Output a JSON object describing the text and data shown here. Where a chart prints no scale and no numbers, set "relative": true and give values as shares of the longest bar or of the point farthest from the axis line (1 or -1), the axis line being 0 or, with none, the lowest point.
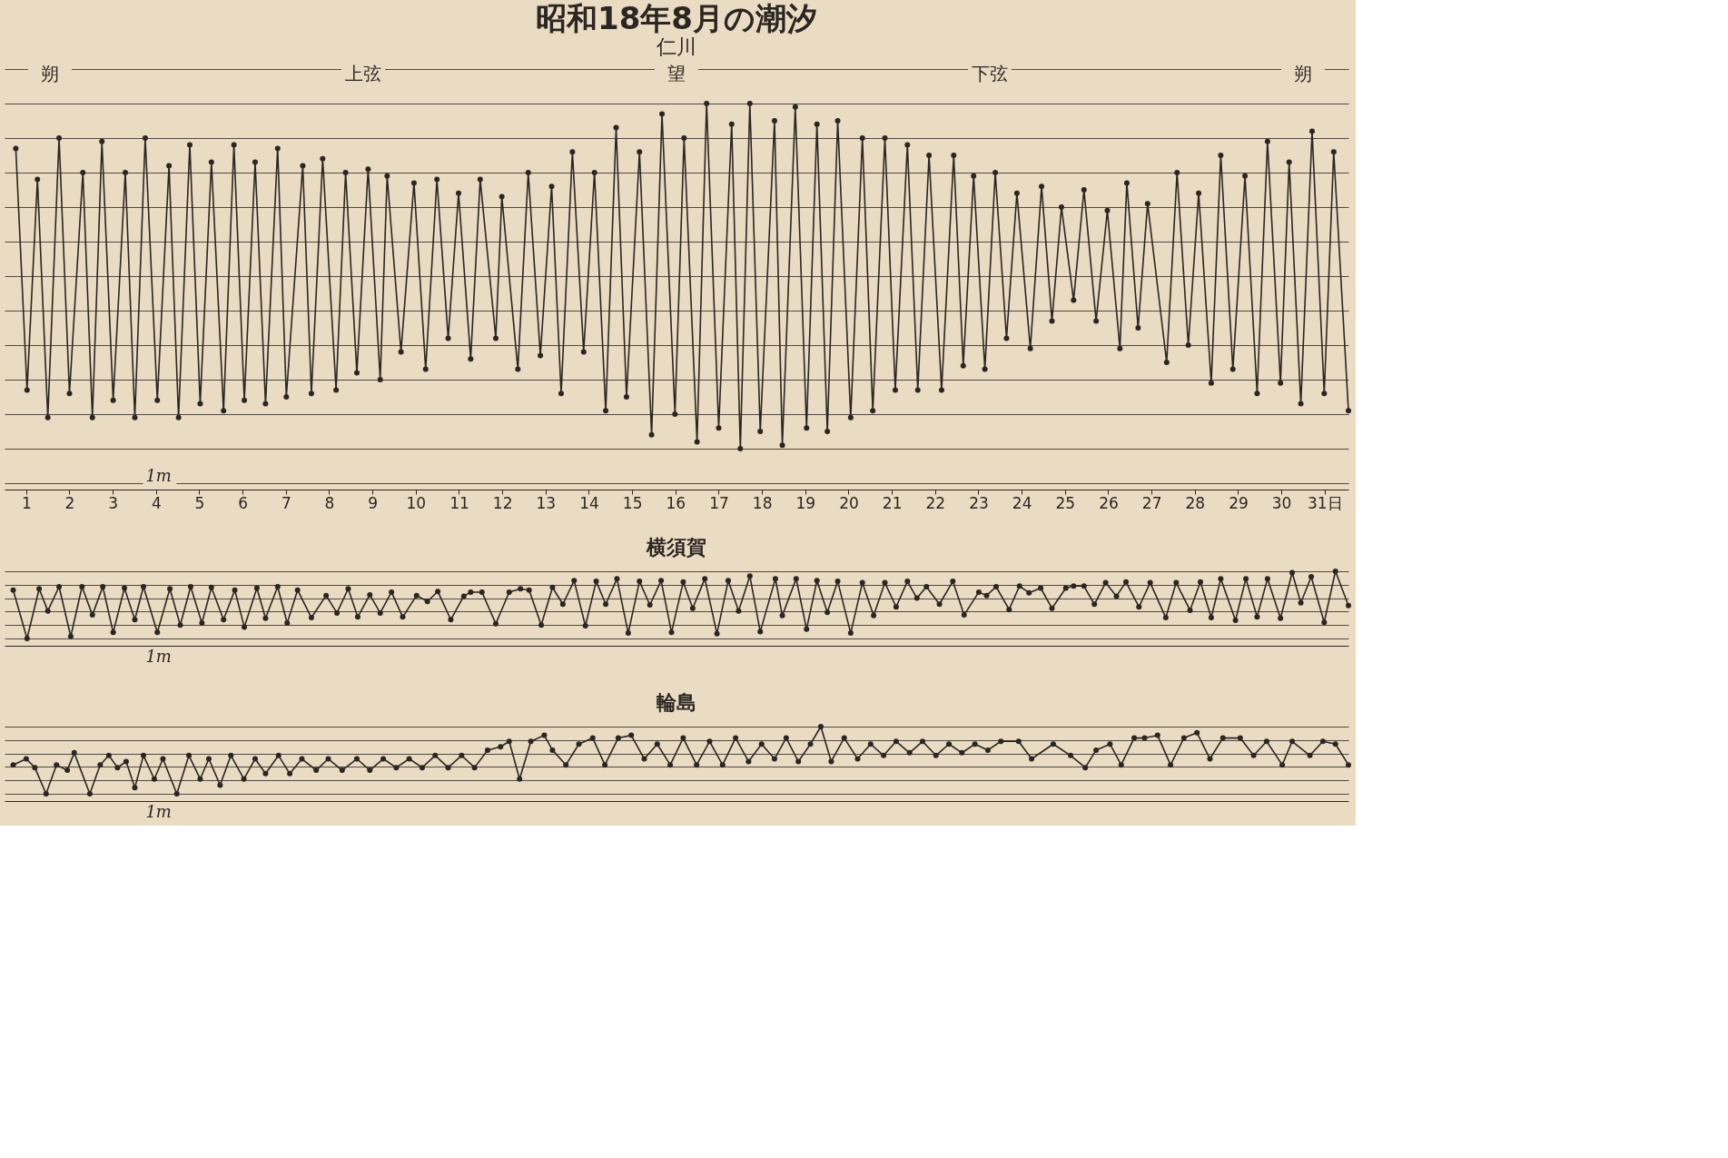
{
  "chart_data": [
    {
      "type": "line",
      "title": "昭和18年8月の潮汐",
      "subtitle": "仁川",
      "relative": true,
      "grid": "y",
      "marker": "circle",
      "line_style": "solid",
      "xlim": [
        1,
        32.05
      ],
      "xticks": [
        {
          "value": 1.5,
          "label": "1"
        },
        {
          "value": 2.5,
          "label": "2"
        },
        {
          "value": 3.5,
          "label": "3"
        },
        {
          "value": 4.5,
          "label": "4"
        },
        {
          "value": 5.5,
          "label": "5"
        },
        {
          "value": 6.5,
          "label": "6"
        },
        {
          "value": 7.5,
          "label": "7"
        },
        {
          "value": 8.5,
          "label": "8"
        },
        {
          "value": 9.5,
          "label": "9"
        },
        {
          "value": 10.5,
          "label": "10"
        },
        {
          "value": 11.5,
          "label": "11"
        },
        {
          "value": 12.5,
          "label": "12"
        },
        {
          "value": 13.5,
          "label": "13"
        },
        {
          "value": 14.5,
          "label": "14"
        },
        {
          "value": 15.5,
          "label": "15"
        },
        {
          "value": 16.5,
          "label": "16"
        },
        {
          "value": 17.5,
          "label": "17"
        },
        {
          "value": 18.5,
          "label": "18"
        },
        {
          "value": 19.5,
          "label": "19"
        },
        {
          "value": 20.5,
          "label": "20"
        },
        {
          "value": 21.5,
          "label": "21"
        },
        {
          "value": 22.5,
          "label": "22"
        },
        {
          "value": 23.5,
          "label": "23"
        },
        {
          "value": 24.5,
          "label": "24"
        },
        {
          "value": 25.5,
          "label": "25"
        },
        {
          "value": 26.5,
          "label": "26"
        },
        {
          "value": 27.5,
          "label": "27"
        },
        {
          "value": 28.5,
          "label": "28"
        },
        {
          "value": 29.5,
          "label": "29"
        },
        {
          "value": 30.5,
          "label": "30"
        },
        {
          "value": 31.5,
          "label": "31日"
        }
      ],
      "annotations": [
        "朔",
        "上弦",
        "望",
        "下弦",
        "朔",
        "1m"
      ],
      "x": [
        1.26,
        1.52,
        1.76,
        2.0,
        2.26,
        2.5,
        2.81,
        3.03,
        3.25,
        3.51,
        3.79,
        4.01,
        4.25,
        4.53,
        4.8,
        5.02,
        5.28,
        5.52,
        5.78,
        6.06,
        6.3,
        6.54,
        6.79,
        7.03,
        7.31,
        7.51,
        7.89,
        8.09,
        8.35,
        8.66,
        8.88,
        9.14,
        9.4,
        9.68,
        9.84,
        10.16,
        10.46,
        10.73,
        10.99,
        11.25,
        11.49,
        11.77,
        11.99,
        12.35,
        12.49,
        12.86,
        13.1,
        13.38,
        13.64,
        13.86,
        14.12,
        14.38,
        14.63,
        14.89,
        15.13,
        15.37,
        15.67,
        15.95,
        16.19,
        16.49,
        16.7,
        17.0,
        17.22,
        17.5,
        17.8,
        18.0,
        18.22,
        18.46,
        18.79,
        18.97,
        19.27,
        19.53,
        19.77,
        20.01,
        20.25,
        20.55,
        20.82,
        21.06,
        21.34,
        21.58,
        21.86,
        22.1,
        22.36,
        22.65,
        22.93,
        23.15,
        23.39,
        23.65,
        23.89,
        24.15,
        24.39,
        24.7,
        24.96,
        25.2,
        25.42,
        25.7,
        25.94,
        26.22,
        26.48,
        26.77,
        26.93,
        27.19,
        27.41,
        27.85,
        28.09,
        28.35,
        28.59,
        28.88,
        29.1,
        29.38,
        29.66,
        29.94,
        30.18,
        30.48,
        30.68,
        30.95,
        31.21,
        31.49,
        31.71,
        32.05
      ],
      "series": [
        {
          "color": "#2b2622",
          "values": [
            0.87,
            0.17,
            0.78,
            0.09,
            0.9,
            0.16,
            0.8,
            0.09,
            0.89,
            0.14,
            0.8,
            0.09,
            0.9,
            0.14,
            0.82,
            0.09,
            0.88,
            0.13,
            0.83,
            0.11,
            0.88,
            0.14,
            0.83,
            0.13,
            0.87,
            0.15,
            0.82,
            0.16,
            0.84,
            0.17,
            0.8,
            0.22,
            0.81,
            0.2,
            0.79,
            0.28,
            0.77,
            0.23,
            0.78,
            0.32,
            0.74,
            0.26,
            0.78,
            0.32,
            0.73,
            0.23,
            0.8,
            0.27,
            0.76,
            0.16,
            0.86,
            0.28,
            0.8,
            0.11,
            0.93,
            0.15,
            0.86,
            0.04,
            0.97,
            0.1,
            0.9,
            0.02,
            1.0,
            0.06,
            0.94,
            0,
            1.0,
            0.05,
            0.95,
            0.01,
            0.99,
            0.06,
            0.94,
            0.05,
            0.95,
            0.09,
            0.9,
            0.11,
            0.9,
            0.17,
            0.88,
            0.17,
            0.85,
            0.17,
            0.85,
            0.24,
            0.79,
            0.23,
            0.8,
            0.32,
            0.74,
            0.29,
            0.76,
            0.37,
            0.7,
            0.43,
            0.75,
            0.37,
            0.69,
            0.29,
            0.77,
            0.35,
            0.71,
            0.25,
            0.8,
            0.3,
            0.74,
            0.19,
            0.85,
            0.23,
            0.79,
            0.16,
            0.89,
            0.19,
            0.83,
            0.13,
            0.92,
            0.16,
            0.86,
            0.11
          ]
        }
      ]
    },
    {
      "type": "line",
      "title": "横須賀",
      "relative": true,
      "grid": "y",
      "marker": "circle",
      "line_style": "solid",
      "xlim": [
        1,
        32.05
      ],
      "tick_labels": false,
      "annotations": [
        "1m"
      ],
      "x": [
        1.2,
        1.52,
        1.8,
        2.0,
        2.26,
        2.53,
        2.79,
        3.03,
        3.27,
        3.51,
        3.77,
        4.01,
        4.21,
        4.53,
        4.82,
        5.06,
        5.3,
        5.56,
        5.78,
        6.06,
        6.32,
        6.54,
        6.83,
        7.03,
        7.31,
        7.53,
        7.77,
        8.09,
        8.43,
        8.68,
        8.94,
        9.16,
        9.44,
        9.68,
        9.94,
        10.2,
        10.52,
        10.77,
        11.01,
        11.31,
        11.61,
        11.77,
        12.03,
        12.35,
        12.66,
        12.92,
        13.12,
        13.4,
        13.66,
        13.9,
        14.16,
        14.42,
        14.67,
        14.89,
        15.15,
        15.41,
        15.67,
        15.91,
        16.17,
        16.41,
        16.68,
        16.9,
        17.18,
        17.46,
        17.72,
        17.96,
        18.22,
        18.46,
        18.81,
        18.97,
        19.29,
        19.53,
        19.77,
        20.01,
        20.25,
        20.55,
        20.82,
        21.08,
        21.34,
        21.6,
        21.86,
        22.08,
        22.3,
        22.6,
        22.91,
        23.17,
        23.51,
        23.69,
        23.91,
        24.21,
        24.45,
        24.67,
        24.94,
        25.2,
        25.52,
        25.7,
        25.94,
        26.18,
        26.44,
        26.69,
        26.91,
        27.21,
        27.47,
        27.83,
        28.07,
        28.39,
        28.63,
        28.88,
        29.1,
        29.44,
        29.68,
        29.94,
        30.18,
        30.48,
        30.75,
        30.95,
        31.19,
        31.49,
        31.75,
        32.05
      ],
      "series": [
        {
          "color": "#2b2622",
          "values": [
            0.72,
            0,
            0.74,
            0.41,
            0.77,
            0.03,
            0.77,
            0.35,
            0.77,
            0.09,
            0.75,
            0.28,
            0.77,
            0.09,
            0.74,
            0.2,
            0.77,
            0.23,
            0.76,
            0.28,
            0.72,
            0.17,
            0.75,
            0.3,
            0.77,
            0.23,
            0.72,
            0.31,
            0.64,
            0.38,
            0.74,
            0.32,
            0.65,
            0.38,
            0.69,
            0.32,
            0.64,
            0.55,
            0.7,
            0.28,
            0.63,
            0.69,
            0.69,
            0.22,
            0.69,
            0.74,
            0.72,
            0.2,
            0.76,
            0.51,
            0.86,
            0.19,
            0.85,
            0.51,
            0.89,
            0.08,
            0.85,
            0.5,
            0.86,
            0.09,
            0.84,
            0.45,
            0.89,
            0.07,
            0.86,
            0.41,
            0.93,
            0.1,
            0.89,
            0.34,
            0.89,
            0.14,
            0.86,
            0.39,
            0.85,
            0.08,
            0.83,
            0.34,
            0.83,
            0.47,
            0.85,
            0.6,
            0.77,
            0.51,
            0.85,
            0.35,
            0.69,
            0.64,
            0.77,
            0.43,
            0.78,
            0.68,
            0.75,
            0.45,
            0.75,
            0.78,
            0.78,
            0.51,
            0.83,
            0.63,
            0.84,
            0.47,
            0.83,
            0.31,
            0.83,
            0.42,
            0.84,
            0.31,
            0.89,
            0.27,
            0.89,
            0.32,
            0.89,
            0.3,
            0.98,
            0.53,
            0.92,
            0.24,
            1.0,
            0.49
          ]
        }
      ]
    },
    {
      "type": "line",
      "title": "輪島",
      "relative": true,
      "grid": "y",
      "marker": "circle",
      "line_style": "solid",
      "xlim": [
        1,
        32.05
      ],
      "tick_labels": false,
      "annotations": [
        "1m"
      ],
      "x": [
        1.2,
        1.5,
        1.7,
        1.96,
        2.2,
        2.45,
        2.61,
        2.97,
        3.21,
        3.41,
        3.61,
        3.81,
        4.01,
        4.21,
        4.46,
        4.66,
        4.98,
        5.26,
        5.52,
        5.72,
        5.98,
        6.23,
        6.53,
        6.79,
        7.03,
        7.33,
        7.59,
        7.87,
        8.2,
        8.48,
        8.8,
        9.14,
        9.44,
        9.75,
        10.05,
        10.35,
        10.65,
        10.95,
        11.25,
        11.56,
        11.86,
        12.16,
        12.46,
        12.66,
        12.9,
        13.16,
        13.47,
        13.66,
        13.97,
        14.27,
        14.59,
        14.87,
        15.18,
        15.48,
        15.78,
        16.08,
        16.38,
        16.68,
        16.99,
        17.29,
        17.59,
        17.89,
        18.19,
        18.49,
        18.79,
        19.06,
        19.34,
        19.62,
        19.86,
        20.1,
        20.4,
        20.71,
        21.01,
        21.31,
        21.6,
        21.91,
        22.21,
        22.52,
        22.82,
        23.12,
        23.42,
        23.72,
        24.02,
        24.43,
        24.73,
        25.23,
        25.63,
        25.97,
        26.22,
        26.54,
        26.8,
        27.1,
        27.34,
        27.64,
        27.94,
        28.25,
        28.55,
        28.85,
        29.15,
        29.55,
        29.86,
        30.16,
        30.52,
        30.75,
        31.16,
        31.46,
        31.75,
        32.05
      ],
      "series": [
        {
          "color": "#2b2622",
          "values": [
            0.43,
            0.52,
            0.39,
            0,
            0.43,
            0.35,
            0.61,
            0,
            0.43,
            0.57,
            0.39,
            0.48,
            0.09,
            0.57,
            0.22,
            0.52,
            0,
            0.57,
            0.22,
            0.52,
            0.13,
            0.57,
            0.22,
            0.52,
            0.3,
            0.57,
            0.3,
            0.52,
            0.35,
            0.52,
            0.35,
            0.52,
            0.35,
            0.52,
            0.39,
            0.52,
            0.39,
            0.57,
            0.39,
            0.57,
            0.39,
            0.65,
            0.7,
            0.78,
            0.22,
            0.78,
            0.87,
            0.65,
            0.43,
            0.74,
            0.83,
            0.43,
            0.83,
            0.87,
            0.52,
            0.74,
            0.43,
            0.83,
            0.43,
            0.78,
            0.43,
            0.83,
            0.48,
            0.74,
            0.52,
            0.83,
            0.48,
            0.74,
            1.0,
            0.48,
            0.83,
            0.52,
            0.74,
            0.57,
            0.78,
            0.61,
            0.78,
            0.57,
            0.74,
            0.61,
            0.74,
            0.65,
            0.78,
            0.78,
            0.52,
            0.74,
            0.57,
            0.39,
            0.65,
            0.74,
            0.43,
            0.83,
            0.83,
            0.87,
            0.43,
            0.83,
            0.91,
            0.52,
            0.83,
            0.83,
            0.57,
            0.78,
            0.43,
            0.78,
            0.57,
            0.78,
            0.74,
            0.43
          ]
        }
      ]
    }
  ]
}
